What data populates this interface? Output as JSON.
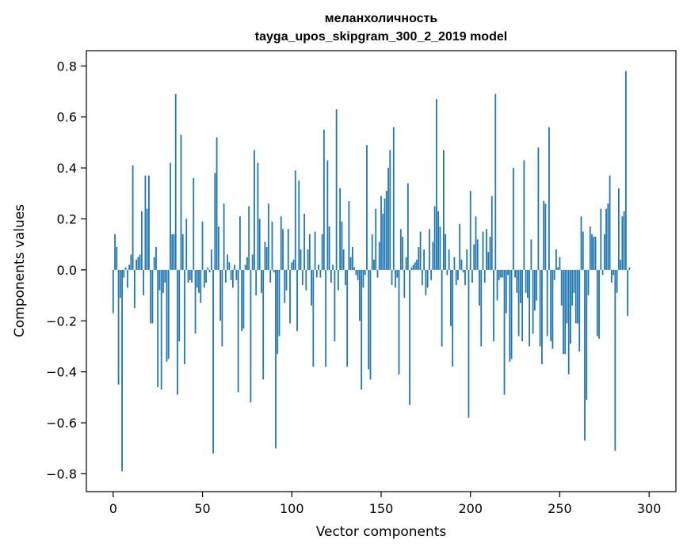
{
  "chart_data": {
    "type": "bar",
    "title": "меланхоличность",
    "subtitle": "tayga_upos_skipgram_300_2_2019 model",
    "xlabel": "Vector components",
    "ylabel": "Components values",
    "xlim": [
      -15,
      315
    ],
    "ylim": [
      -0.87,
      0.86
    ],
    "grid": false,
    "x_ticks": [
      0,
      50,
      100,
      150,
      200,
      250,
      300
    ],
    "x_tick_labels": [
      "0",
      "50",
      "100",
      "150",
      "200",
      "250",
      "300"
    ],
    "y_ticks": [
      -0.8,
      -0.6,
      -0.4,
      -0.2,
      0.0,
      0.2,
      0.4,
      0.6,
      0.8
    ],
    "y_tick_labels": [
      "−0.8",
      "−0.6",
      "−0.4",
      "−0.2",
      "0.0",
      "0.2",
      "0.4",
      "0.6",
      "0.8"
    ],
    "bar_color": "#1f77b4",
    "values": [
      -0.17,
      0.14,
      0.09,
      -0.45,
      -0.11,
      -0.79,
      -0.03,
      0.01,
      -0.07,
      0.02,
      0.06,
      0.41,
      -0.15,
      0.04,
      0.05,
      0.06,
      0.23,
      -0.1,
      0.37,
      0.24,
      0.37,
      -0.21,
      -0.21,
      0.05,
      0.09,
      -0.46,
      -0.08,
      -0.47,
      -0.09,
      -0.05,
      -0.36,
      -0.35,
      0.42,
      0.14,
      0.14,
      0.69,
      -0.49,
      -0.28,
      0.53,
      0.14,
      -0.37,
      0.2,
      -0.05,
      -0.04,
      -0.05,
      0.36,
      -0.25,
      -0.07,
      -0.09,
      -0.13,
      0.19,
      -0.07,
      -0.05,
      0.01,
      -0.01,
      0.08,
      -0.72,
      0.38,
      0.52,
      0.17,
      -0.2,
      -0.3,
      0.26,
      -0.05,
      0.06,
      0.03,
      -0.04,
      -0.07,
      0.02,
      -0.04,
      -0.48,
      0.21,
      -0.24,
      -0.23,
      0.02,
      0.05,
      0.25,
      -0.52,
      0.06,
      0.47,
      -0.1,
      0.42,
      0.2,
      -0.09,
      -0.43,
      0.11,
      0.09,
      0.26,
      -0.05,
      0.19,
      -0.01,
      -0.7,
      -0.33,
      -0.26,
      0.21,
      0.16,
      -0.13,
      -0.08,
      0.16,
      -0.21,
      0.03,
      0.04,
      0.39,
      -0.24,
      0.35,
      0.08,
      -0.06,
      0.22,
      -0.08,
      0.08,
      0.14,
      -0.14,
      -0.38,
      0.15,
      -0.03,
      0.02,
      -0.03,
      0.14,
      0.55,
      -0.38,
      0.43,
      0.17,
      -0.05,
      0.02,
      -0.28,
      0.63,
      -0.08,
      0.32,
      0.19,
      0.08,
      -0.06,
      -0.38,
      0.27,
      0.05,
      0.09,
      0.01,
      -0.02,
      -0.04,
      -0.2,
      -0.47,
      -0.07,
      -0.02,
      0.49,
      -0.39,
      -0.43,
      0.14,
      0.04,
      0.24,
      -0.03,
      0.11,
      0.29,
      0.22,
      0.28,
      0.31,
      0.4,
      0.47,
      -0.06,
      0.56,
      -0.07,
      -0.03,
      -0.41,
      0.16,
      0.13,
      -0.11,
      0.05,
      0.34,
      -0.53,
      0.01,
      0.02,
      0.03,
      0.04,
      0.09,
      0.15,
      -0.06,
      0.08,
      -0.1,
      -0.07,
      0.16,
      -0.04,
      0.11,
      0.25,
      0.67,
      0.23,
      0.17,
      -0.3,
      0.47,
      0.14,
      -0.02,
      0.08,
      -0.22,
      -0.38,
      0.05,
      -0.06,
      -0.04,
      0.18,
      0.04,
      -0.01,
      -0.06,
      0.08,
      -0.58,
      0.31,
      -0.05,
      0.1,
      0.21,
      0.12,
      -0.14,
      -0.3,
      0.15,
      -0.05,
      0.16,
      0.07,
      0.13,
      0.29,
      -0.28,
      0.69,
      -0.12,
      -0.04,
      -0.03,
      -0.03,
      -0.49,
      -0.17,
      -0.02,
      -0.36,
      -0.35,
      0.4,
      -0.03,
      -0.09,
      -0.26,
      -0.13,
      -0.28,
      0.43,
      -0.09,
      -0.11,
      -0.3,
      0.12,
      -0.25,
      -0.16,
      -0.12,
      0.48,
      -0.3,
      -0.37,
      0.27,
      0.26,
      -0.26,
      0.56,
      -0.28,
      -0.31,
      -0.04,
      0.08,
      0.01,
      0.05,
      -0.14,
      -0.33,
      -0.33,
      -0.21,
      -0.41,
      -0.29,
      -0.14,
      -0.09,
      -0.21,
      -0.21,
      -0.32,
      0.21,
      0.15,
      -0.67,
      -0.51,
      -0.1,
      0.17,
      0.14,
      0.13,
      0.13,
      -0.26,
      -0.27,
      0.24,
      -0.02,
      0.14,
      0.24,
      0.26,
      0.37,
      -0.05,
      -0.02,
      -0.71,
      -0.09,
      0.32,
      0.04,
      0.21,
      0.23,
      0.78,
      -0.18,
      0.01
    ]
  }
}
